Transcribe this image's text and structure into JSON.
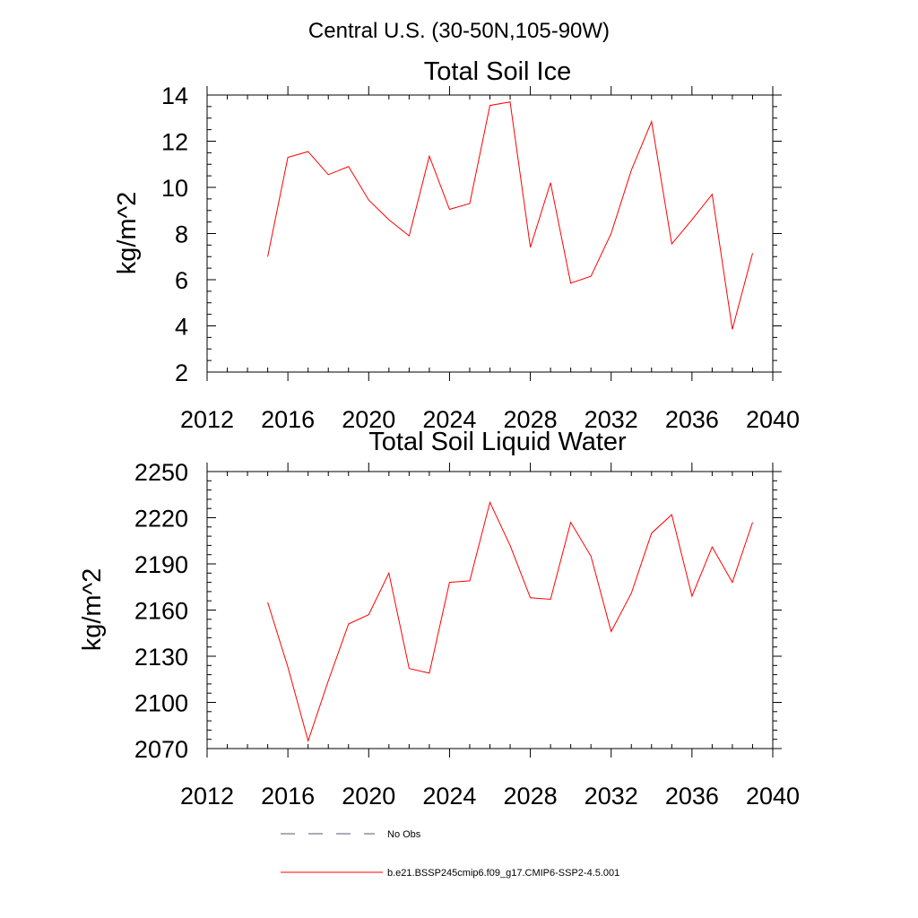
{
  "figure": {
    "suptitle": "Central U.S. (30-50N,105-90W)"
  },
  "legend": {
    "obs_label": "No Obs",
    "obs_color": "#555577",
    "model_label": "b.e21.BSSP245cmip6.f09_g17.CMIP6-SSP2-4.5.001",
    "model_color": "#ff0000"
  },
  "chart_data": [
    {
      "type": "line",
      "title": "Total Soil Ice",
      "ylabel": "kg/m^2",
      "xlabel": "",
      "xlim": [
        2012,
        2040
      ],
      "ylim": [
        2,
        14
      ],
      "xticks": [
        2012,
        2016,
        2020,
        2024,
        2028,
        2032,
        2036,
        2040
      ],
      "yticks": [
        2,
        4,
        6,
        8,
        10,
        12,
        14
      ],
      "x_minor_step": 1,
      "y_minor_step": 0.5,
      "grid": false,
      "series": [
        {
          "color": "#ff0000",
          "x": [
            2015,
            2016,
            2017,
            2018,
            2019,
            2020,
            2021,
            2022,
            2023,
            2024,
            2025,
            2026,
            2027,
            2028,
            2029,
            2030,
            2031,
            2032,
            2033,
            2034,
            2035,
            2036,
            2037,
            2038,
            2039
          ],
          "y": [
            7.0,
            11.3,
            11.55,
            10.55,
            10.9,
            9.45,
            8.6,
            7.9,
            11.35,
            9.05,
            9.3,
            13.55,
            13.7,
            7.4,
            10.2,
            5.85,
            6.15,
            8.0,
            10.75,
            12.85,
            7.55,
            8.6,
            9.7,
            3.85,
            7.15
          ]
        }
      ]
    },
    {
      "type": "line",
      "title": "Total Soil Liquid Water",
      "ylabel": "kg/m^2",
      "xlabel": "",
      "xlim": [
        2012,
        2040
      ],
      "ylim": [
        2070,
        2250
      ],
      "xticks": [
        2012,
        2016,
        2020,
        2024,
        2028,
        2032,
        2036,
        2040
      ],
      "yticks": [
        2070,
        2100,
        2130,
        2160,
        2190,
        2220,
        2250
      ],
      "x_minor_step": 1,
      "y_minor_step": 6,
      "grid": false,
      "series": [
        {
          "color": "#ff0000",
          "x": [
            2015,
            2016,
            2017,
            2018,
            2019,
            2020,
            2021,
            2022,
            2023,
            2024,
            2025,
            2026,
            2027,
            2028,
            2029,
            2030,
            2031,
            2032,
            2033,
            2034,
            2035,
            2036,
            2037,
            2038,
            2039
          ],
          "y": [
            2165,
            2123,
            2075,
            2114,
            2151,
            2157,
            2184,
            2122,
            2119,
            2178,
            2179,
            2230,
            2202,
            2168,
            2167,
            2217,
            2195,
            2146,
            2171,
            2210,
            2222,
            2169,
            2201,
            2178,
            2217
          ]
        }
      ]
    }
  ]
}
